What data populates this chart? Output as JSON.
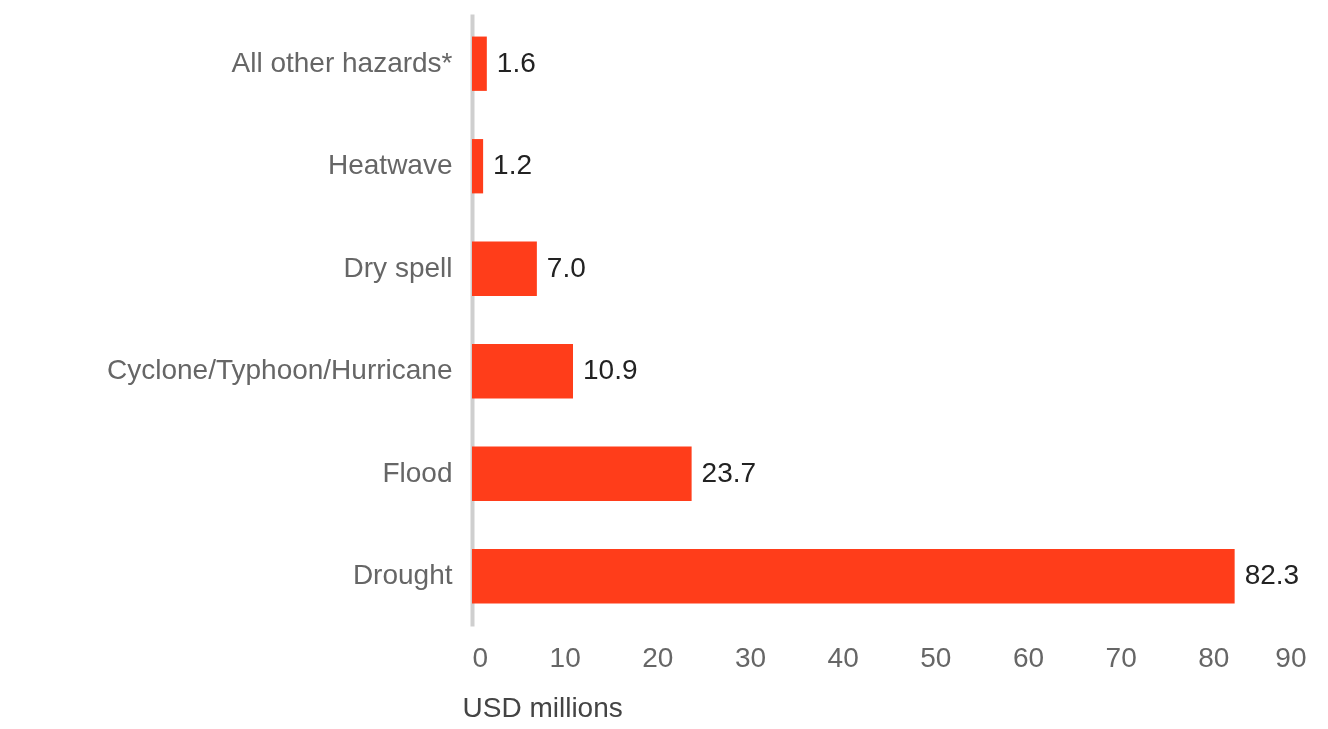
{
  "chart_data": {
    "type": "bar",
    "orientation": "horizontal",
    "xlabel": "USD millions",
    "categories": [
      "All other hazards*",
      "Heatwave",
      "Dry spell",
      "Cyclone/Typhoon/Hurricane",
      "Flood",
      "Drought"
    ],
    "values": [
      1.6,
      1.2,
      7.0,
      10.9,
      23.7,
      82.3
    ],
    "value_labels": [
      "1.6",
      "1.2",
      "7.0",
      "10.9",
      "23.7",
      "82.3"
    ],
    "color": "#ff3d1a",
    "xlim": [
      0,
      90
    ],
    "xticks": [
      0,
      10,
      20,
      30,
      40,
      50,
      60,
      70,
      80,
      90
    ],
    "grid": false
  }
}
